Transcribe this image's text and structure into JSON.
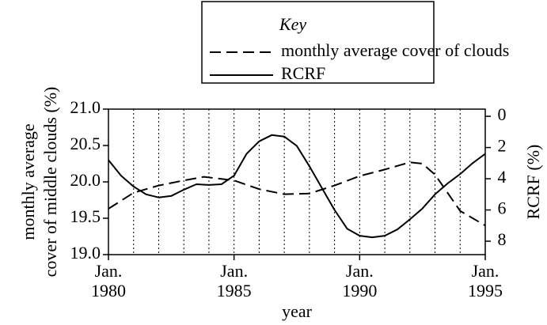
{
  "chart_data": {
    "type": "line",
    "legend_title": "Key",
    "xlabel": "year",
    "ylabel": [
      "monthly average",
      "cover of middle clouds (%)"
    ],
    "y2label": "RCRF (%)",
    "xlim": [
      1980,
      1995
    ],
    "xticks": [
      {
        "value": 1980,
        "label": "Jan.\n1980"
      },
      {
        "value": 1985,
        "label": "Jan.\n1985"
      },
      {
        "value": 1990,
        "label": "Jan.\n1990"
      },
      {
        "value": 1995,
        "label": "Jan.\n1995"
      }
    ],
    "x_minor_ticks": [
      1981,
      1982,
      1983,
      1984,
      1985,
      1986,
      1987,
      1988,
      1989,
      1990,
      1991,
      1992,
      1993,
      1994
    ],
    "ylim": [
      19.0,
      21.0
    ],
    "yticks": [
      {
        "value": 19,
        "label": "19.0"
      },
      19.5,
      {
        "value": 20,
        "label": "20.0"
      },
      20.5,
      {
        "value": 21,
        "label": "21.0"
      }
    ],
    "y2lim": [
      8.86,
      -0.46
    ],
    "y2ticks": [
      0,
      2,
      4,
      6,
      8
    ],
    "grid": true,
    "series": [
      {
        "name": "monthly average cover of clouds",
        "color": "#000000",
        "dash": true,
        "x": [
          1980,
          1981,
          1982,
          1983,
          1983.8,
          1985,
          1986,
          1987,
          1988,
          1989,
          1990,
          1991,
          1992,
          1992.5,
          1993,
          1993.5,
          1994,
          1995
        ],
        "values": [
          19.63,
          19.85,
          19.95,
          20.02,
          20.07,
          20.02,
          19.9,
          19.83,
          19.84,
          19.95,
          20.08,
          20.17,
          20.27,
          20.25,
          20.1,
          19.85,
          19.6,
          19.4
        ]
      },
      {
        "name": "RCRF",
        "color": "#000000",
        "dash": false,
        "axis": "y2",
        "x": [
          1980,
          1980.5,
          1981,
          1981.5,
          1982,
          1982.5,
          1983,
          1983.5,
          1984,
          1984.5,
          1985,
          1985.5,
          1986,
          1986.5,
          1987,
          1987.5,
          1988,
          1988.5,
          1989,
          1989.5,
          1990,
          1990.5,
          1991,
          1991.5,
          1992,
          1992.5,
          1993,
          1993.5,
          1994,
          1994.5,
          1995
        ],
        "values": [
          2.8,
          3.8,
          4.5,
          5.0,
          5.2,
          5.1,
          4.7,
          4.35,
          4.4,
          4.35,
          3.8,
          2.4,
          1.6,
          1.2,
          1.3,
          1.9,
          3.2,
          4.6,
          6.0,
          7.2,
          7.65,
          7.75,
          7.65,
          7.25,
          6.6,
          5.9,
          5.0,
          4.3,
          3.7,
          3.0,
          2.4
        ]
      }
    ]
  }
}
